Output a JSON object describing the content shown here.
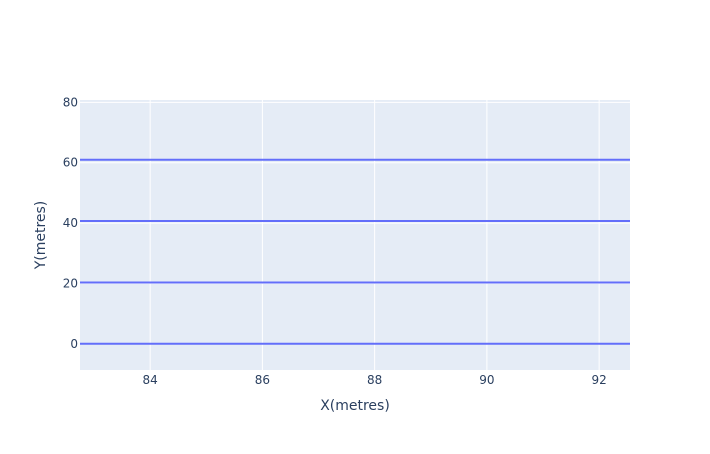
{
  "chart_data": {
    "type": "line",
    "title": "",
    "xlabel": "X(metres)",
    "ylabel": "Y(metres)",
    "xlim": [
      82.75,
      92.55
    ],
    "ylim": [
      -8.7,
      80.8
    ],
    "xticks": [
      84,
      86,
      88,
      90,
      92
    ],
    "yticks": [
      0,
      20,
      40,
      60,
      80
    ],
    "grid": true,
    "legend": "none",
    "colors": {
      "plot_background": "#e5ecf6",
      "grid": "#ffffff",
      "line": "#636efa",
      "text": "#2a3f5f"
    },
    "series": [
      {
        "x": [
          82.75,
          92.55
        ],
        "y": [
          0,
          0
        ]
      },
      {
        "x": [
          82.75,
          92.55
        ],
        "y": [
          20.3,
          20.3
        ]
      },
      {
        "x": [
          82.75,
          92.55
        ],
        "y": [
          40.7,
          40.7
        ]
      },
      {
        "x": [
          82.75,
          92.55
        ],
        "y": [
          61,
          61
        ]
      }
    ]
  }
}
